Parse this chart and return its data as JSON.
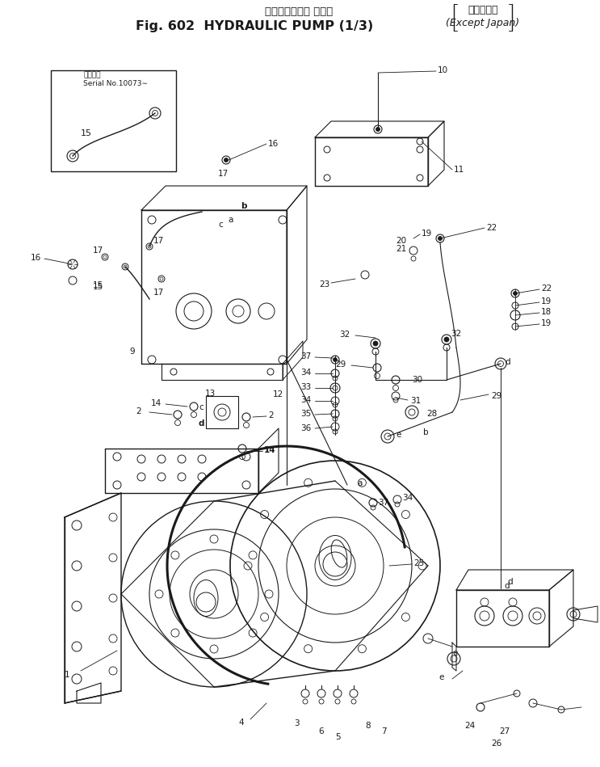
{
  "title_line1": "ハイドロリック ボンプ",
  "title_line2": "Fig. 602  HYDRAULIC PUMP (1/3)",
  "title_aside1": "海　外　向",
  "title_aside2": "(Except Japan)",
  "bg_color": "#ffffff",
  "line_color": "#1a1a1a",
  "fs": 7.5,
  "fs_title1": 9.5,
  "fs_title2": 11.5
}
